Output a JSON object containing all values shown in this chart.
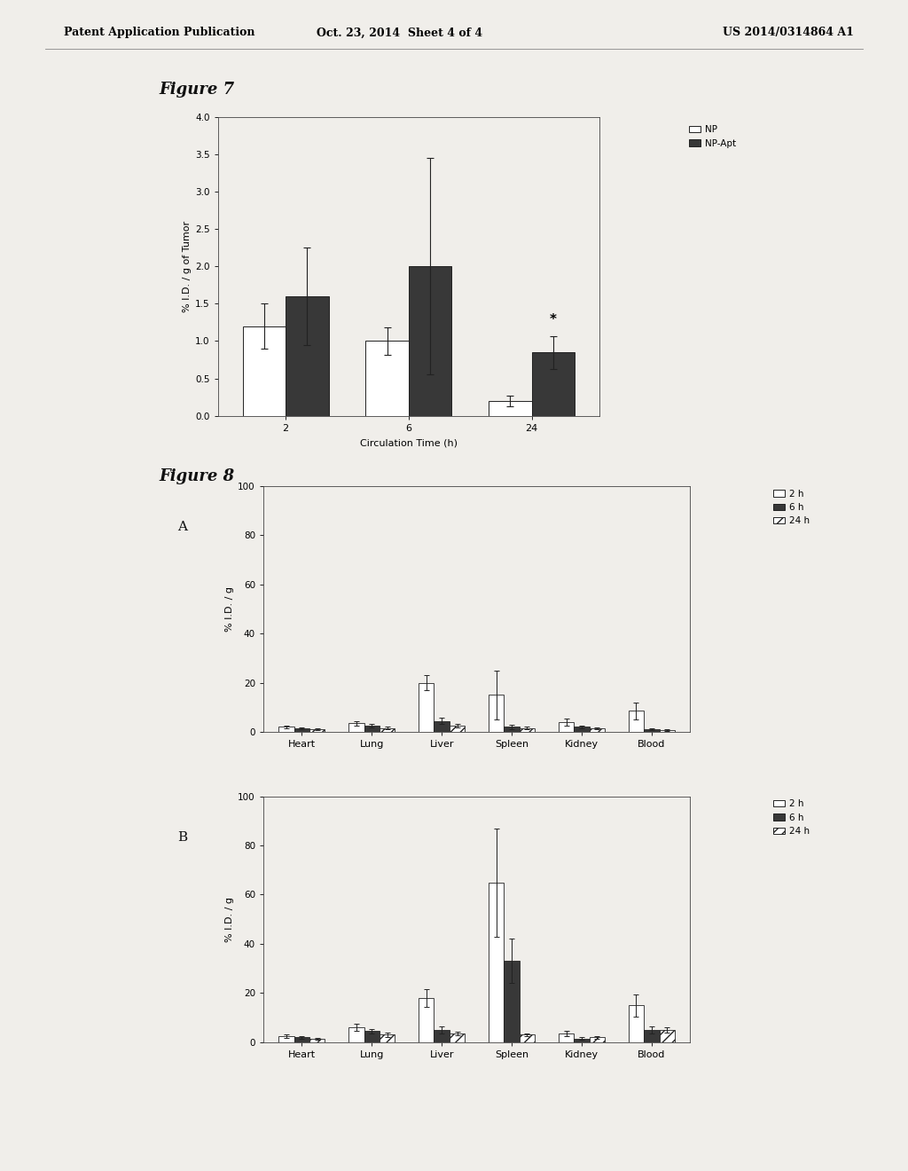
{
  "header_left": "Patent Application Publication",
  "header_mid": "Oct. 23, 2014  Sheet 4 of 4",
  "header_right": "US 2014/0314864 A1",
  "fig7_title": "Figure 7",
  "fig7_xlabel": "Circulation Time (h)",
  "fig7_ylabel": "% I.D. / g of Tumor",
  "fig7_ylim": [
    0,
    4.0
  ],
  "fig7_yticks": [
    0.0,
    0.5,
    1.0,
    1.5,
    2.0,
    2.5,
    3.0,
    3.5,
    4.0
  ],
  "fig7_xtick_labels": [
    "2",
    "6",
    "24"
  ],
  "fig7_NP": [
    1.2,
    1.0,
    0.2
  ],
  "fig7_NP_err": [
    0.3,
    0.18,
    0.07
  ],
  "fig7_NPApt": [
    1.6,
    2.0,
    0.85
  ],
  "fig7_NPApt_err": [
    0.65,
    1.45,
    0.22
  ],
  "fig7_legend": [
    "□ NP",
    "■ NP-Apt"
  ],
  "fig7_star_label": "*",
  "fig8_title": "Figure 8",
  "fig8A_label": "A",
  "fig8B_label": "B",
  "fig8_ylabel": "% I.D. / g",
  "fig8_ylim": [
    0,
    100
  ],
  "fig8_yticks": [
    0,
    20,
    40,
    60,
    80,
    100
  ],
  "fig8_organs": [
    "Heart",
    "Lung",
    "Liver",
    "Spleen",
    "Kidney",
    "Blood"
  ],
  "fig8_legend": [
    "□ 2 h",
    "■ 6 h",
    "▨ 24 h"
  ],
  "fig8A_2h": [
    2.0,
    3.5,
    20.0,
    15.0,
    4.0,
    8.5
  ],
  "fig8A_6h": [
    1.5,
    2.5,
    4.5,
    2.0,
    2.0,
    1.0
  ],
  "fig8A_24h": [
    1.0,
    1.5,
    2.5,
    1.5,
    1.5,
    0.8
  ],
  "fig8A_2h_err": [
    0.7,
    0.9,
    3.0,
    10.0,
    1.5,
    3.5
  ],
  "fig8A_6h_err": [
    0.4,
    0.7,
    1.2,
    0.8,
    0.5,
    0.4
  ],
  "fig8A_24h_err": [
    0.3,
    0.5,
    0.7,
    0.5,
    0.4,
    0.3
  ],
  "fig8B_2h": [
    2.5,
    6.0,
    18.0,
    65.0,
    3.5,
    15.0
  ],
  "fig8B_6h": [
    2.0,
    4.5,
    5.0,
    33.0,
    1.5,
    5.0
  ],
  "fig8B_24h": [
    1.5,
    3.0,
    3.5,
    3.0,
    2.0,
    5.0
  ],
  "fig8B_2h_err": [
    0.6,
    1.5,
    3.5,
    22.0,
    1.0,
    4.5
  ],
  "fig8B_6h_err": [
    0.5,
    1.0,
    1.5,
    9.0,
    0.5,
    1.5
  ],
  "fig8B_24h_err": [
    0.4,
    0.8,
    0.8,
    0.5,
    0.5,
    1.2
  ],
  "bg_color": "#f0eeea",
  "bar_white": "#ffffff",
  "bar_dark": "#383838",
  "bar_hatch_24h": "///",
  "bar_edge": "#222222",
  "font_color": "#111111",
  "header_font_color": "#000000"
}
